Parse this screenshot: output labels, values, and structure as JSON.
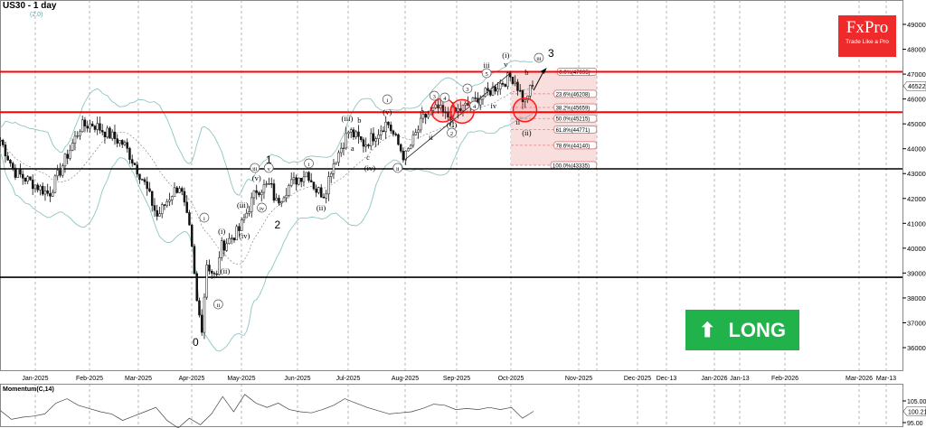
{
  "header": {
    "title": "US30 - 1 day",
    "subtitle": "(2.0)"
  },
  "logo": {
    "brand": "FxPro",
    "tagline": "Trade Like a Pro"
  },
  "signal": {
    "label": "LONG",
    "icon": "arrow-up-icon",
    "color": "#22b24c"
  },
  "momentum": {
    "label": "Momentum(C,14)",
    "ticks": [
      "105.00",
      "95.00"
    ],
    "current": "100.21",
    "values": [
      100.5,
      96.5,
      97.5,
      98,
      99,
      104,
      106,
      103,
      101.5,
      100,
      99,
      96,
      98,
      100,
      102,
      96,
      92.5,
      97,
      94,
      99,
      107,
      100,
      108,
      104,
      102,
      104,
      101,
      100,
      99.5,
      101,
      103,
      106,
      104,
      102,
      100.5,
      99,
      99.5,
      100,
      101.5,
      103.5,
      103,
      101,
      101.5,
      101,
      102,
      101,
      102,
      97,
      100.21
    ]
  },
  "chart_data": {
    "type": "candlestick",
    "symbol": "US30",
    "timeframe": "1 day",
    "ylim": [
      35000,
      50000
    ],
    "yticks": [
      36000,
      37000,
      38000,
      39000,
      40000,
      41000,
      42000,
      43000,
      44000,
      45000,
      46000,
      47000,
      48000,
      49000
    ],
    "last_price": "46522",
    "xticks": [
      "Jan-2025",
      "Feb-2025",
      "Mar-2025",
      "Apr-2025",
      "May-2025",
      "Jun-2025",
      "Jul-2025",
      "Aug-2025",
      "Sep-2025",
      "Oct-2025",
      "Nov-2025",
      "Dec-2025",
      "Dec-13",
      "Jan-2026",
      "Jan-13",
      "Feb-2026",
      "Mar-2026",
      "Mar-13"
    ],
    "close_path": [
      [
        "2024-12-12",
        44350
      ],
      [
        "2024-12-20",
        43080
      ],
      [
        "2025-01-01",
        42540
      ],
      [
        "2025-01-09",
        42170
      ],
      [
        "2025-01-27",
        44900
      ],
      [
        "2025-02-03",
        45000
      ],
      [
        "2025-02-21",
        44170
      ],
      [
        "2025-03-04",
        42720
      ],
      [
        "2025-03-12",
        41270
      ],
      [
        "2025-03-20",
        42170
      ],
      [
        "2025-03-25",
        42540
      ],
      [
        "2025-03-31",
        40540
      ],
      [
        "2025-04-04",
        37630
      ],
      [
        "2025-04-07",
        36730
      ],
      [
        "2025-04-09",
        39450
      ],
      [
        "2025-04-15",
        38720
      ],
      [
        "2025-04-17",
        40000
      ],
      [
        "2025-04-28",
        40720
      ],
      [
        "2025-05-08",
        42350
      ],
      [
        "2025-05-16",
        42540
      ],
      [
        "2025-05-19",
        41810
      ],
      [
        "2025-05-27",
        42540
      ],
      [
        "2025-06-06",
        43080
      ],
      [
        "2025-06-11",
        42350
      ],
      [
        "2025-06-16",
        42170
      ],
      [
        "2025-06-20",
        43260
      ],
      [
        "2025-06-30",
        44720
      ],
      [
        "2025-07-03",
        44530
      ],
      [
        "2025-07-09",
        44170
      ],
      [
        "2025-07-17",
        44720
      ],
      [
        "2025-07-22",
        45080
      ],
      [
        "2025-08-01",
        43620
      ],
      [
        "2025-08-12",
        45260
      ],
      [
        "2025-08-20",
        45620
      ],
      [
        "2025-08-25",
        45260
      ],
      [
        "2025-08-29",
        45440
      ],
      [
        "2025-09-08",
        45800
      ],
      [
        "2025-09-16",
        46170
      ],
      [
        "2025-09-23",
        46530
      ],
      [
        "2025-10-01",
        46900
      ],
      [
        "2025-10-03",
        46800
      ],
      [
        "2025-10-09",
        45800
      ],
      [
        "2025-10-10",
        46170
      ],
      [
        "2025-10-14",
        46522
      ]
    ],
    "horizontal_levels": [
      {
        "price": 47095,
        "color": "#ff0000"
      },
      {
        "price": 45470,
        "color": "#ff0000"
      },
      {
        "price": 43190,
        "color": "#000000"
      },
      {
        "price": 38830,
        "color": "#000000"
      }
    ],
    "fibonacci": {
      "from": "2025-10-01",
      "to": "2025-11-01",
      "levels": [
        {
          "label": "0.0%(47095)",
          "price": 47095
        },
        {
          "label": "23.6%(46208)",
          "price": 46208
        },
        {
          "label": "38.2%(45659)",
          "price": 45659
        },
        {
          "label": "50.0%(45215)",
          "price": 45215
        },
        {
          "label": "61.8%(44771)",
          "price": 44771
        },
        {
          "label": "78.6%(44140)",
          "price": 44140
        },
        {
          "label": "100.0%(43335)",
          "price": 43335
        }
      ]
    },
    "trendline": [
      [
        "2025-08-01",
        43550
      ],
      [
        "2025-09-30",
        47000
      ]
    ],
    "projection_arrow": [
      [
        "2025-10-14",
        46350
      ],
      [
        "2025-10-20",
        47150
      ]
    ],
    "highlight_circles": [
      [
        "2025-08-23",
        45550
      ],
      [
        "2025-09-03",
        45500
      ],
      [
        "2025-10-09",
        45560
      ]
    ],
    "wave_labels": [
      {
        "t": "0",
        "d": "2025-04-03",
        "p": 36180,
        "c": false,
        "big": true
      },
      {
        "t": "1",
        "d": "2025-05-15",
        "p": 43517,
        "c": false,
        "big": true
      },
      {
        "t": "2",
        "d": "2025-05-20",
        "p": 40900,
        "c": false,
        "big": true
      },
      {
        "t": "3",
        "d": "2025-10-24",
        "p": 47800,
        "c": false,
        "big": true
      },
      {
        "t": "i",
        "d": "2025-04-08",
        "p": 41120,
        "c": true
      },
      {
        "t": "(i)",
        "d": "2025-04-18",
        "p": 40580,
        "c": false
      },
      {
        "t": "(ii)",
        "d": "2025-04-20",
        "p": 38980,
        "c": false
      },
      {
        "t": "ii",
        "d": "2025-04-16",
        "p": 37635,
        "c": true
      },
      {
        "t": "(iii)",
        "d": "2025-04-30",
        "p": 41630,
        "c": false
      },
      {
        "t": "(iv)",
        "d": "2025-05-01",
        "p": 40395,
        "c": false
      },
      {
        "t": "(v)",
        "d": "2025-05-08",
        "p": 42720,
        "c": false
      },
      {
        "t": "iv",
        "d": "2025-05-11",
        "p": 41520,
        "c": true
      },
      {
        "t": "iii",
        "d": "2025-05-07",
        "p": 43120,
        "c": true
      },
      {
        "t": "v",
        "d": "2025-05-15",
        "p": 43120,
        "c": true
      },
      {
        "t": "i",
        "d": "2025-06-07",
        "p": 43300,
        "c": true
      },
      {
        "t": "(ii)",
        "d": "2025-06-14",
        "p": 41520,
        "c": false
      },
      {
        "t": "(iii)",
        "d": "2025-06-29",
        "p": 45115,
        "c": false
      },
      {
        "t": "b",
        "d": "2025-07-06",
        "p": 45042,
        "c": false
      },
      {
        "t": "a",
        "d": "2025-07-02",
        "p": 43917,
        "c": false
      },
      {
        "t": "c",
        "d": "2025-07-11",
        "p": 43553,
        "c": false
      },
      {
        "t": "(iv)",
        "d": "2025-07-12",
        "p": 43120,
        "c": false
      },
      {
        "t": "(v)",
        "d": "2025-07-22",
        "p": 45369,
        "c": false
      },
      {
        "t": "i",
        "d": "2025-07-22",
        "p": 45877,
        "c": true
      },
      {
        "t": "ii",
        "d": "2025-07-28",
        "p": 43120,
        "c": true
      },
      {
        "t": "i",
        "d": "2025-08-11",
        "p": 45514,
        "c": false
      },
      {
        "t": "ii",
        "d": "2025-08-16",
        "p": 44352,
        "c": false
      },
      {
        "t": "3",
        "d": "2025-08-18",
        "p": 46022,
        "c": true
      },
      {
        "t": "4",
        "d": "2025-08-24",
        "p": 45950,
        "c": true
      },
      {
        "t": "(C)",
        "d": "2025-08-28",
        "p": 44861,
        "c": false
      },
      {
        "t": "2",
        "d": "2025-08-28",
        "p": 44534,
        "c": true
      },
      {
        "t": "3",
        "d": "2025-09-06",
        "p": 46313,
        "c": true
      },
      {
        "t": "4",
        "d": "2025-09-10",
        "p": 45623,
        "c": true
      },
      {
        "t": "iii",
        "d": "2025-09-17",
        "p": 47257,
        "c": false
      },
      {
        "t": "5",
        "d": "2025-09-17",
        "p": 46930,
        "c": true
      },
      {
        "t": "iv",
        "d": "2025-09-21",
        "p": 45623,
        "c": false
      },
      {
        "t": "v",
        "d": "2025-09-28",
        "p": 47293,
        "c": false
      },
      {
        "t": "(i)",
        "d": "2025-09-28",
        "p": 47656,
        "c": false
      },
      {
        "t": "b",
        "d": "2025-10-10",
        "p": 46967,
        "c": false
      },
      {
        "t": "iii",
        "d": "2025-10-17",
        "p": 47548,
        "c": true
      },
      {
        "t": "ii",
        "d": "2025-10-05",
        "p": 44970,
        "c": false
      },
      {
        "t": "(ii)",
        "d": "2025-10-10",
        "p": 44534,
        "c": false
      }
    ],
    "colors": {
      "bollinger": "#8fc4c4",
      "up_signal": "#1a9b1a",
      "down_signal": "#cc1111"
    }
  }
}
